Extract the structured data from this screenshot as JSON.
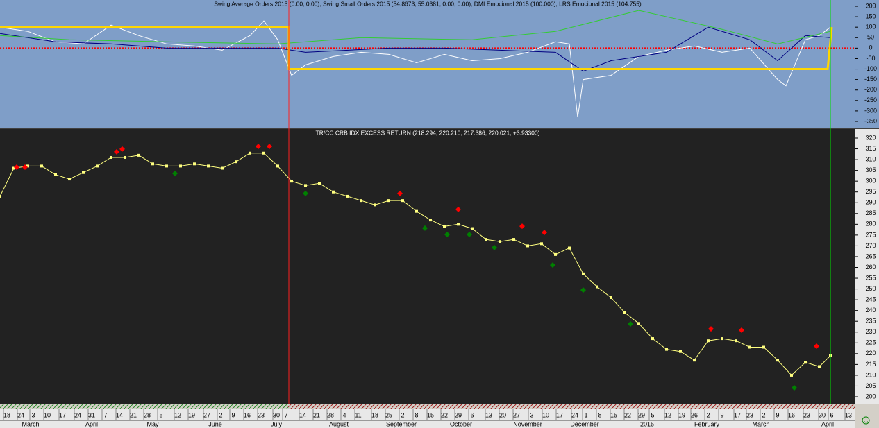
{
  "chart_data": [
    {
      "type": "line",
      "title": "Swing Average Orders 2015 (0.00, 0.00), Swing Small Orders 2015 (54.8673, 55.0381, 0.00, 0.00), DMI Emocional 2015 (100.000), LRS Emocional 2015 (104.755)",
      "xlim": [
        0,
        308
      ],
      "ylim": [
        -350,
        200
      ],
      "yticks": [
        200,
        150,
        100,
        50,
        0,
        -50,
        -100,
        -150,
        -200,
        -250,
        -300,
        -350
      ],
      "series": [
        {
          "color": "#ffffff",
          "x": [
            0,
            10,
            20,
            30,
            40,
            50,
            60,
            70,
            80,
            90,
            95,
            100,
            105,
            110,
            120,
            130,
            140,
            150,
            160,
            170,
            180,
            190,
            200,
            205,
            208,
            210,
            220,
            230,
            240,
            250,
            260,
            270,
            280,
            283,
            290,
            295,
            299
          ],
          "values": [
            100,
            80,
            30,
            20,
            110,
            60,
            20,
            10,
            -10,
            60,
            130,
            40,
            -130,
            -80,
            -40,
            -20,
            -30,
            -70,
            -30,
            -60,
            -50,
            -20,
            30,
            20,
            -330,
            -150,
            -130,
            -40,
            -10,
            10,
            -20,
            0,
            -150,
            -180,
            40,
            60,
            100
          ]
        },
        {
          "color": "#000080",
          "x": [
            0,
            20,
            40,
            60,
            80,
            100,
            110,
            140,
            160,
            180,
            200,
            210,
            220,
            240,
            255,
            270,
            280,
            290,
            299
          ],
          "values": [
            70,
            30,
            20,
            0,
            0,
            0,
            -20,
            0,
            0,
            -10,
            -20,
            -110,
            -60,
            -20,
            100,
            40,
            -60,
            60,
            50
          ]
        },
        {
          "color": "#33cc33",
          "x": [
            0,
            25,
            60,
            100,
            130,
            170,
            200,
            230,
            260,
            280,
            299
          ],
          "values": [
            60,
            40,
            30,
            20,
            50,
            40,
            80,
            180,
            90,
            20,
            80
          ]
        },
        {
          "color": "#ffd700",
          "x": [
            0,
            104,
            104,
            298,
            299.5
          ],
          "values": [
            100,
            100,
            -100,
            -100,
            100
          ]
        }
      ]
    },
    {
      "type": "line",
      "title": "TR/CC CRB IDX EXCESS RETURN (218.294, 220.210, 217.386, 220.021, +3.93300)",
      "xlim": [
        0,
        308
      ],
      "ylim": [
        200,
        320
      ],
      "yticks": [
        320,
        315,
        310,
        305,
        300,
        295,
        290,
        285,
        280,
        275,
        270,
        265,
        260,
        255,
        250,
        245,
        240,
        235,
        230,
        225,
        220,
        215,
        210,
        205,
        200
      ],
      "color": "#ffff80",
      "x": [
        0,
        5,
        10,
        15,
        20,
        25,
        30,
        35,
        40,
        45,
        50,
        55,
        60,
        65,
        70,
        75,
        80,
        85,
        90,
        95,
        100,
        105,
        110,
        115,
        120,
        125,
        130,
        135,
        140,
        145,
        150,
        155,
        160,
        165,
        170,
        175,
        180,
        185,
        190,
        195,
        200,
        205,
        210,
        215,
        220,
        225,
        230,
        235,
        240,
        245,
        250,
        255,
        260,
        265,
        270,
        275,
        280,
        285,
        290,
        295,
        299
      ],
      "values": [
        293,
        306,
        307,
        307,
        303,
        301,
        304,
        307,
        311,
        311,
        312,
        308,
        307,
        307,
        308,
        307,
        306,
        309,
        313,
        313,
        307,
        300,
        298,
        299,
        295,
        293,
        291,
        289,
        291,
        291,
        286,
        282,
        279,
        280,
        278,
        273,
        272,
        273,
        270,
        271,
        266,
        269,
        257,
        251,
        246,
        239,
        234,
        227,
        222,
        221,
        217,
        226,
        227,
        226,
        223,
        223,
        217,
        210,
        216,
        214,
        219
      ],
      "markers": [
        {
          "color": "#ff0000",
          "x": [
            6,
            9,
            42,
            44,
            93,
            97,
            144,
            165,
            188,
            196,
            256,
            267,
            294
          ],
          "values": [
            306.5,
            306.5,
            313.6,
            314.9,
            316.1,
            316.1,
            294.3,
            286.9,
            279.1,
            276.2,
            231.5,
            230.9,
            223.5
          ]
        },
        {
          "color": "#008000",
          "x": [
            63,
            110,
            153,
            161,
            169,
            178,
            199,
            210,
            227,
            286
          ],
          "values": [
            303.6,
            294.3,
            278.2,
            275.3,
            275.3,
            269.2,
            261.1,
            249.5,
            233.8,
            204.2
          ]
        }
      ],
      "vlines": [
        {
          "x": 104,
          "color": "#ff2020"
        },
        {
          "x": 299,
          "color": "#00dd00"
        }
      ],
      "xticks": [
        {
          "value": 2.5,
          "label": "18"
        },
        {
          "value": 7.5,
          "label": "24"
        },
        {
          "value": 12,
          "label": "3"
        },
        {
          "value": 17,
          "label": "10"
        },
        {
          "value": 22.5,
          "label": "17"
        },
        {
          "value": 28,
          "label": "24"
        },
        {
          "value": 33,
          "label": "31"
        },
        {
          "value": 38,
          "label": "7"
        },
        {
          "value": 43,
          "label": "14"
        },
        {
          "value": 48,
          "label": "21"
        },
        {
          "value": 53,
          "label": "28"
        },
        {
          "value": 58,
          "label": "5"
        },
        {
          "value": 64,
          "label": "12"
        },
        {
          "value": 69,
          "label": "19"
        },
        {
          "value": 74.5,
          "label": "27"
        },
        {
          "value": 79.5,
          "label": "2"
        },
        {
          "value": 84,
          "label": "9"
        },
        {
          "value": 89,
          "label": "16"
        },
        {
          "value": 94,
          "label": "23"
        },
        {
          "value": 99.5,
          "label": "30"
        },
        {
          "value": 103,
          "label": "7"
        },
        {
          "value": 109,
          "label": "14"
        },
        {
          "value": 114,
          "label": "21"
        },
        {
          "value": 119,
          "label": "28"
        },
        {
          "value": 124,
          "label": "4"
        },
        {
          "value": 129,
          "label": "11"
        },
        {
          "value": 135,
          "label": "18"
        },
        {
          "value": 140,
          "label": "25"
        },
        {
          "value": 145,
          "label": "2"
        },
        {
          "value": 150,
          "label": "8"
        },
        {
          "value": 155,
          "label": "15"
        },
        {
          "value": 160,
          "label": "22"
        },
        {
          "value": 165,
          "label": "29"
        },
        {
          "value": 170,
          "label": "6"
        },
        {
          "value": 176,
          "label": "13"
        },
        {
          "value": 181,
          "label": "20"
        },
        {
          "value": 186,
          "label": "27"
        },
        {
          "value": 191.5,
          "label": "3"
        },
        {
          "value": 196.5,
          "label": "10"
        },
        {
          "value": 201.5,
          "label": "17"
        },
        {
          "value": 207,
          "label": "24"
        },
        {
          "value": 211,
          "label": "1"
        },
        {
          "value": 216,
          "label": "8"
        },
        {
          "value": 221,
          "label": "15"
        },
        {
          "value": 226,
          "label": "22"
        },
        {
          "value": 231,
          "label": "29"
        },
        {
          "value": 235,
          "label": "5"
        },
        {
          "value": 240.5,
          "label": "12"
        },
        {
          "value": 245.5,
          "label": "19"
        },
        {
          "value": 250,
          "label": "26"
        },
        {
          "value": 255,
          "label": "2"
        },
        {
          "value": 260,
          "label": "9"
        },
        {
          "value": 265.5,
          "label": "17"
        },
        {
          "value": 270,
          "label": "23"
        },
        {
          "value": 275,
          "label": "2"
        },
        {
          "value": 280,
          "label": "9"
        },
        {
          "value": 285,
          "label": "16"
        },
        {
          "value": 290.5,
          "label": "23"
        },
        {
          "value": 296,
          "label": "30"
        },
        {
          "value": 299.5,
          "label": "6"
        },
        {
          "value": 305.5,
          "label": "13"
        }
      ],
      "month_ticks": [
        {
          "value": 11,
          "label": "March"
        },
        {
          "value": 33,
          "label": "April"
        },
        {
          "value": 55,
          "label": "May"
        },
        {
          "value": 77.5,
          "label": "June"
        },
        {
          "value": 99.5,
          "label": "July"
        },
        {
          "value": 122,
          "label": "August"
        },
        {
          "value": 144.5,
          "label": "September"
        },
        {
          "value": 166,
          "label": "October"
        },
        {
          "value": 190,
          "label": "November"
        },
        {
          "value": 210.5,
          "label": "December"
        },
        {
          "value": 233,
          "label": "2015"
        },
        {
          "value": 254.5,
          "label": "February"
        },
        {
          "value": 274,
          "label": "March"
        },
        {
          "value": 298,
          "label": "April"
        }
      ]
    }
  ]
}
